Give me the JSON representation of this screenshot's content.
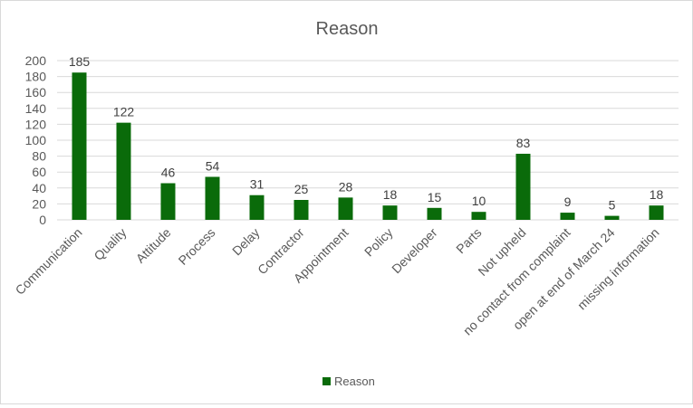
{
  "chart_data": {
    "type": "bar",
    "title": "Reason",
    "categories": [
      "Communication",
      "Quality",
      "Attitude",
      "Process",
      "Delay",
      "Contractor",
      "Appointment",
      "Policy",
      "Developer",
      "Parts",
      "Not upheld",
      "no contact from complaint",
      "open at end of March 24",
      "missing information"
    ],
    "series": [
      {
        "name": "Reason",
        "values": [
          185,
          122,
          46,
          54,
          31,
          25,
          28,
          18,
          15,
          10,
          83,
          9,
          5,
          18
        ],
        "color": "#0a6b0a"
      }
    ],
    "ylim": [
      0,
      200
    ],
    "yticks": [
      0,
      20,
      40,
      60,
      80,
      100,
      120,
      140,
      160,
      180,
      200
    ],
    "grid": true,
    "legend": "bottom",
    "data_labels": true
  }
}
